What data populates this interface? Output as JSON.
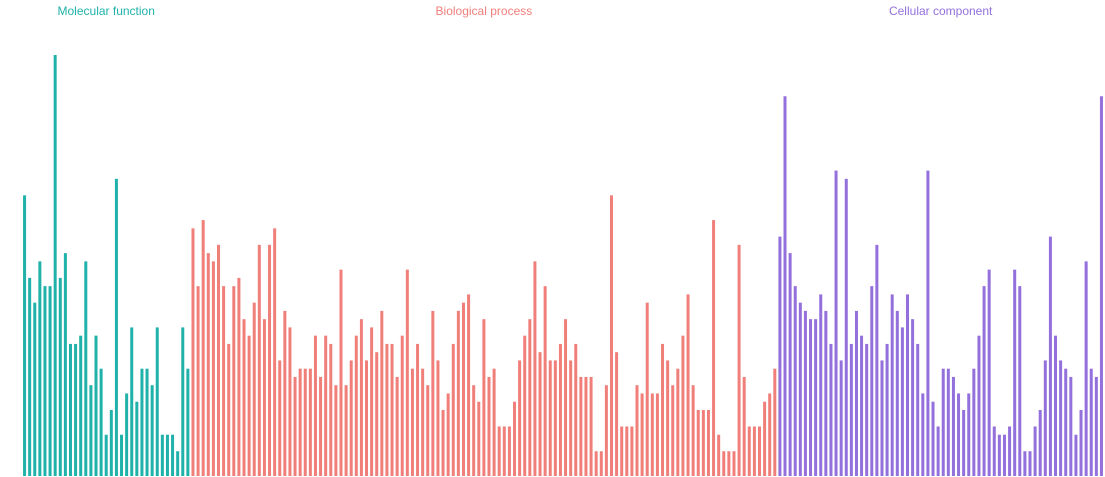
{
  "chart_data": {
    "type": "bar",
    "series": [
      {
        "name": "Molecular function",
        "color": "#20b2aa",
        "values": [
          34,
          24,
          21,
          26,
          23,
          23,
          51,
          24,
          27,
          16,
          16,
          17,
          26,
          11,
          17,
          13,
          5,
          8,
          36,
          5,
          10,
          18,
          9,
          13,
          13,
          11,
          18,
          5,
          5,
          5,
          3,
          18,
          13
        ]
      },
      {
        "name": "Biological process",
        "color": "#f07f7a",
        "values": [
          30,
          23,
          31,
          27,
          26,
          28,
          23,
          16,
          23,
          24,
          19,
          17,
          21,
          28,
          19,
          28,
          30,
          14,
          20,
          18,
          12,
          13,
          13,
          13,
          17,
          12,
          17,
          16,
          11,
          25,
          11,
          14,
          17,
          19,
          14,
          18,
          15,
          20,
          16,
          16,
          12,
          17,
          25,
          13,
          16,
          13,
          11,
          20,
          14,
          8,
          10,
          16,
          20,
          21,
          22,
          11,
          9,
          19,
          12,
          13,
          6,
          6,
          6,
          9,
          14,
          17,
          19,
          26,
          15,
          23,
          14,
          14,
          16,
          19,
          14,
          16,
          12,
          12,
          12,
          3,
          3,
          11,
          34,
          15,
          6,
          6,
          6,
          11,
          10,
          21,
          10,
          10,
          16,
          14,
          11,
          13,
          17,
          22,
          11,
          8,
          8,
          8,
          31,
          5,
          3,
          3,
          3,
          28,
          12,
          6,
          6,
          6,
          9,
          10,
          13
        ]
      },
      {
        "name": "Cellular component",
        "color": "#9370db",
        "values": [
          29,
          46,
          27,
          23,
          21,
          20,
          19,
          19,
          22,
          20,
          16,
          37,
          14,
          36,
          16,
          20,
          17,
          16,
          23,
          28,
          14,
          16,
          22,
          20,
          18,
          22,
          19,
          16,
          10,
          37,
          9,
          6,
          13,
          13,
          12,
          10,
          8,
          10,
          13,
          17,
          23,
          25,
          6,
          5,
          5,
          6,
          25,
          23,
          3,
          3,
          6,
          8,
          14,
          29,
          17,
          14,
          13,
          12,
          5,
          8,
          26,
          13,
          12,
          46
        ]
      }
    ]
  }
}
